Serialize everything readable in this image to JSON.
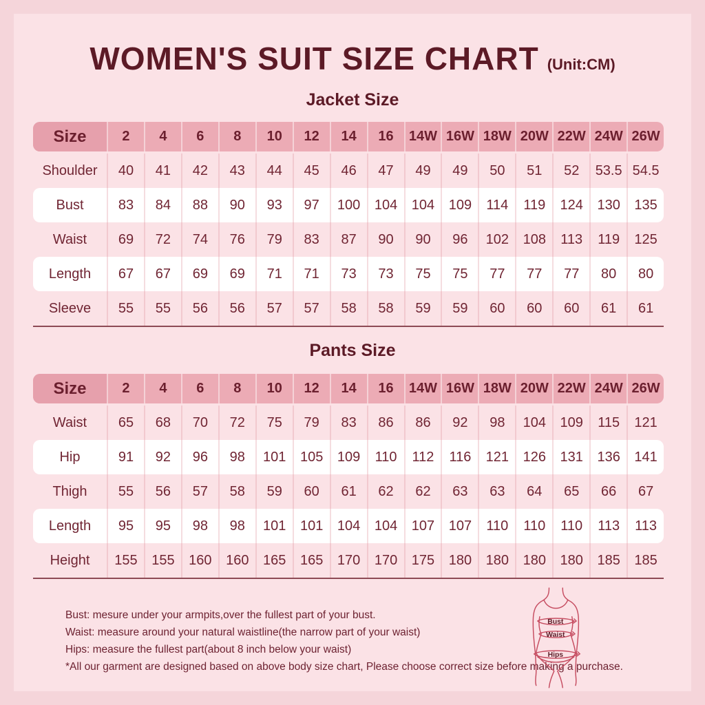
{
  "page": {
    "title": "WOMEN'S SUIT SIZE CHART",
    "unit": "(Unit:CM)"
  },
  "colors": {
    "outer_background": "#f5d5da",
    "panel_background": "#fbe2e6",
    "header_row_background": "#ecabb5",
    "size_cell_background": "#e6a0ac",
    "highlight_row_background": "#ffffff",
    "text_maroon": "#702533",
    "title_maroon": "#5c1a26",
    "figure_stroke": "#c64d61"
  },
  "tables": [
    {
      "title": "Jacket Size",
      "columns": [
        "Size",
        "2",
        "4",
        "6",
        "8",
        "10",
        "12",
        "14",
        "16",
        "14W",
        "16W",
        "18W",
        "20W",
        "22W",
        "24W",
        "26W"
      ],
      "rows": [
        {
          "label": "Shoulder",
          "highlight": false,
          "values": [
            40,
            41,
            42,
            43,
            44,
            45,
            46,
            47,
            49,
            49,
            50,
            51,
            52,
            53.5,
            54.5
          ]
        },
        {
          "label": "Bust",
          "highlight": true,
          "values": [
            83,
            84,
            88,
            90,
            93,
            97,
            100,
            104,
            104,
            109,
            114,
            119,
            124,
            130,
            135
          ]
        },
        {
          "label": "Waist",
          "highlight": false,
          "values": [
            69,
            72,
            74,
            76,
            79,
            83,
            87,
            90,
            90,
            96,
            102,
            108,
            113,
            119,
            125
          ]
        },
        {
          "label": "Length",
          "highlight": true,
          "values": [
            67,
            67,
            69,
            69,
            71,
            71,
            73,
            73,
            75,
            75,
            77,
            77,
            77,
            80,
            80
          ]
        },
        {
          "label": "Sleeve",
          "highlight": false,
          "values": [
            55,
            55,
            56,
            56,
            57,
            57,
            58,
            58,
            59,
            59,
            60,
            60,
            60,
            61,
            61
          ]
        }
      ]
    },
    {
      "title": "Pants Size",
      "columns": [
        "Size",
        "2",
        "4",
        "6",
        "8",
        "10",
        "12",
        "14",
        "16",
        "14W",
        "16W",
        "18W",
        "20W",
        "22W",
        "24W",
        "26W"
      ],
      "rows": [
        {
          "label": "Waist",
          "highlight": false,
          "values": [
            65,
            68,
            70,
            72,
            75,
            79,
            83,
            86,
            86,
            92,
            98,
            104,
            109,
            115,
            121
          ]
        },
        {
          "label": "Hip",
          "highlight": true,
          "values": [
            91,
            92,
            96,
            98,
            101,
            105,
            109,
            110,
            112,
            116,
            121,
            126,
            131,
            136,
            141
          ]
        },
        {
          "label": "Thigh",
          "highlight": false,
          "values": [
            55,
            56,
            57,
            58,
            59,
            60,
            61,
            62,
            62,
            63,
            63,
            64,
            65,
            66,
            67
          ]
        },
        {
          "label": "Length",
          "highlight": true,
          "values": [
            95,
            95,
            98,
            98,
            101,
            101,
            104,
            104,
            107,
            107,
            110,
            110,
            110,
            113,
            113
          ]
        },
        {
          "label": "Height",
          "highlight": false,
          "values": [
            155,
            155,
            160,
            160,
            165,
            165,
            170,
            170,
            175,
            180,
            180,
            180,
            180,
            185,
            185
          ]
        }
      ]
    }
  ],
  "notes": [
    "Bust: mesure under your armpits,over the fullest part of your bust.",
    "Waist: measure around your natural waistline(the narrow part of your waist)",
    "Hips: measure the fullest part(about 8 inch below your waist)",
    "*All our garment are designed based on above body size chart, Please choose correct size before making a purchase."
  ],
  "figure": {
    "labels": [
      "Bust",
      "Waist",
      "Hips"
    ]
  }
}
